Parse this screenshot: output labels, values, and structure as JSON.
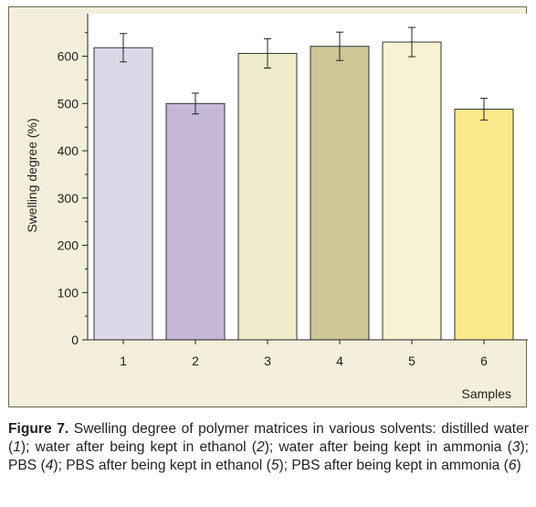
{
  "chart_data": {
    "type": "bar",
    "categories": [
      "1",
      "2",
      "3",
      "4",
      "5",
      "6"
    ],
    "values": [
      618,
      500,
      606,
      621,
      630,
      488
    ],
    "errors": [
      30,
      22,
      31,
      30,
      31,
      23
    ],
    "bar_colors": [
      "#ddd8e8",
      "#c5b8d6",
      "#eeeccb",
      "#cec697",
      "#f8f1d3",
      "#fce98c"
    ],
    "xlabel": "Samples",
    "ylabel": "Swelling degree (%)",
    "ylim": [
      0,
      690
    ],
    "yticks": [
      0,
      100,
      200,
      300,
      400,
      500,
      600
    ]
  },
  "caption": {
    "label": "Figure 7.",
    "text": [
      " Swelling degree of polymer matrices in various solvents: distilled water (",
      "1",
      "); water after being kept in ethanol (",
      "2",
      "); water after being kept in ammonia (",
      "3",
      "); PBS (",
      "4",
      "); PBS after being kept in ethanol (",
      "5",
      "); PBS after being kept in ammonia (",
      "6",
      ")"
    ]
  },
  "colors": {
    "panel_background": "#f4efda",
    "panel_border": "#6b6b50",
    "plot_background": "#ffffff"
  }
}
